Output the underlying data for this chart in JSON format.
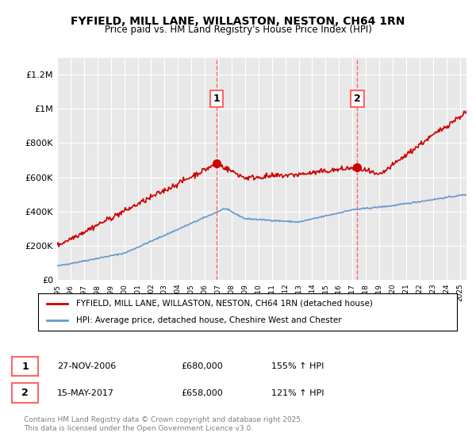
{
  "title_line1": "FYFIELD, MILL LANE, WILLASTON, NESTON, CH64 1RN",
  "title_line2": "Price paid vs. HM Land Registry's House Price Index (HPI)",
  "ylim": [
    0,
    1300000
  ],
  "yticks": [
    0,
    200000,
    400000,
    600000,
    800000,
    1000000,
    1200000
  ],
  "ytick_labels": [
    "£0",
    "£200K",
    "£400K",
    "£600K",
    "£800K",
    "£1M",
    "£1.2M"
  ],
  "background_color": "#ffffff",
  "plot_bg_color": "#e8e8e8",
  "red_color": "#cc0000",
  "blue_color": "#6699cc",
  "vline_color": "#ff6666",
  "marker1_year": 2006.9,
  "marker2_year": 2017.37,
  "marker1_price": 680000,
  "marker2_price": 658000,
  "legend_label_red": "FYFIELD, MILL LANE, WILLASTON, NESTON, CH64 1RN (detached house)",
  "legend_label_blue": "HPI: Average price, detached house, Cheshire West and Chester",
  "annotation1_label": "1",
  "annotation2_label": "2",
  "table_row1": [
    "1",
    "27-NOV-2006",
    "£680,000",
    "155% ↑ HPI"
  ],
  "table_row2": [
    "2",
    "15-MAY-2017",
    "£658,000",
    "121% ↑ HPI"
  ],
  "footer": "Contains HM Land Registry data © Crown copyright and database right 2025.\nThis data is licensed under the Open Government Licence v3.0.",
  "xmin": 1995,
  "xmax": 2025.5
}
